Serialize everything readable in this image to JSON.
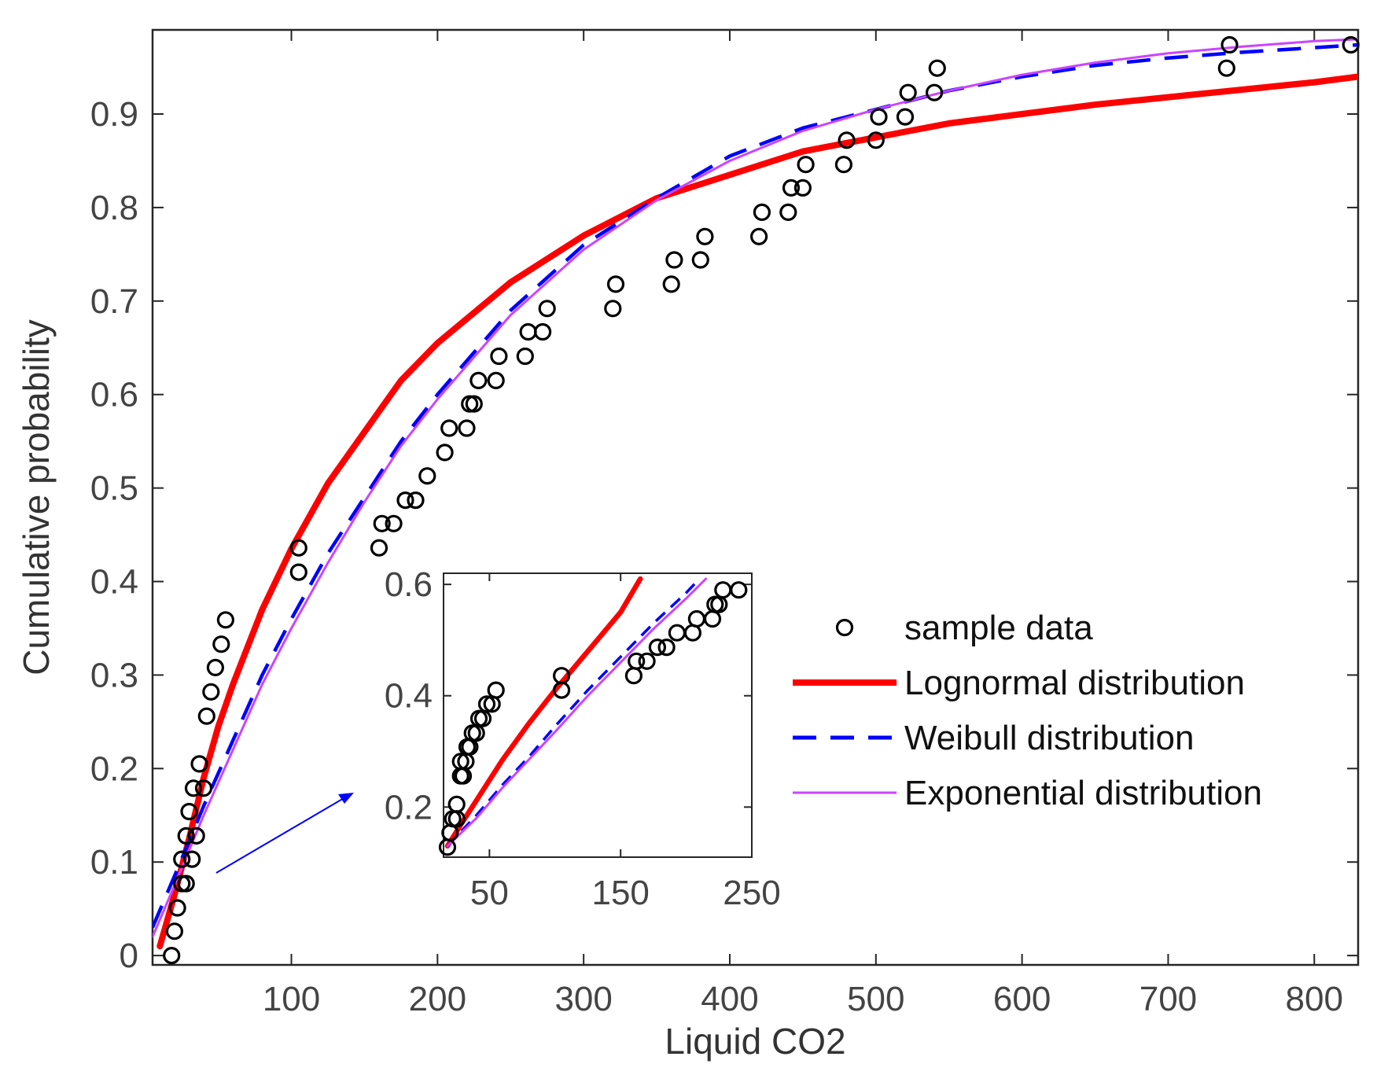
{
  "chart_data": [
    {
      "type": "line",
      "role": "main",
      "xlabel": "Liquid CO2",
      "ylabel": "Cumulative probability",
      "xlim": [
        5,
        830
      ],
      "ylim": [
        -0.01,
        0.99
      ],
      "xticks": [
        100,
        200,
        300,
        400,
        500,
        600,
        700,
        800
      ],
      "yticks": [
        0,
        0.1,
        0.2,
        0.3,
        0.4,
        0.5,
        0.6,
        0.7,
        0.8,
        0.9
      ],
      "ytick_labels": [
        "0",
        "0.1",
        "0.2",
        "0.3",
        "0.4",
        "0.5",
        "0.6",
        "0.7",
        "0.8",
        "0.9"
      ],
      "grid": false,
      "legend_position": "center-right",
      "series": [
        {
          "name": "sample data",
          "kind": "scatter",
          "color": "#000000",
          "x": [
            18,
            20,
            22,
            25,
            25,
            28,
            28,
            30,
            32,
            33,
            35,
            37,
            40,
            42,
            45,
            48,
            52,
            55,
            105,
            105,
            160,
            162,
            170,
            178,
            185,
            193,
            205,
            208,
            220,
            222,
            225,
            228,
            240,
            242,
            260,
            262,
            272,
            275,
            320,
            322,
            360,
            362,
            380,
            383,
            420,
            422,
            440,
            442,
            450,
            452,
            478,
            480,
            500,
            502,
            520,
            522,
            540,
            542,
            740,
            742,
            825
          ],
          "y": [
            0,
            0.026,
            0.051,
            0.077,
            0.103,
            0.077,
            0.128,
            0.154,
            0.103,
            0.179,
            0.128,
            0.205,
            0.179,
            0.256,
            0.282,
            0.308,
            0.333,
            0.359,
            0.41,
            0.436,
            0.436,
            0.462,
            0.462,
            0.487,
            0.487,
            0.513,
            0.538,
            0.564,
            0.564,
            0.59,
            0.59,
            0.615,
            0.615,
            0.641,
            0.641,
            0.667,
            0.667,
            0.692,
            0.692,
            0.718,
            0.718,
            0.744,
            0.744,
            0.769,
            0.769,
            0.795,
            0.795,
            0.821,
            0.821,
            0.846,
            0.846,
            0.872,
            0.872,
            0.897,
            0.897,
            0.923,
            0.923,
            0.949,
            0.949,
            0.974,
            0.974
          ]
        },
        {
          "name": "Lognormal distribution",
          "kind": "line",
          "color": "#ff0000",
          "x": [
            10,
            20,
            30,
            40,
            50,
            60,
            80,
            100,
            125,
            150,
            175,
            200,
            250,
            300,
            350,
            400,
            450,
            500,
            550,
            600,
            650,
            700,
            750,
            800,
            830
          ],
          "y": [
            0.01,
            0.065,
            0.125,
            0.19,
            0.245,
            0.29,
            0.37,
            0.435,
            0.505,
            0.56,
            0.615,
            0.655,
            0.72,
            0.77,
            0.81,
            0.835,
            0.86,
            0.875,
            0.89,
            0.9,
            0.91,
            0.918,
            0.926,
            0.934,
            0.94
          ]
        },
        {
          "name": "Weibull distribution",
          "kind": "line",
          "color": "#0000ff",
          "dashed": true,
          "x": [
            5,
            20,
            40,
            60,
            80,
            100,
            125,
            150,
            175,
            200,
            250,
            300,
            350,
            400,
            450,
            500,
            550,
            600,
            650,
            700,
            750,
            800,
            830
          ],
          "y": [
            0.03,
            0.085,
            0.16,
            0.23,
            0.3,
            0.36,
            0.43,
            0.49,
            0.55,
            0.6,
            0.69,
            0.76,
            0.81,
            0.855,
            0.885,
            0.905,
            0.925,
            0.94,
            0.952,
            0.96,
            0.966,
            0.971,
            0.974
          ]
        },
        {
          "name": "Exponential distribution",
          "kind": "line",
          "color": "#cc44ff",
          "x": [
            5,
            20,
            40,
            60,
            80,
            100,
            125,
            150,
            175,
            200,
            250,
            300,
            350,
            400,
            450,
            500,
            550,
            600,
            650,
            700,
            750,
            800,
            830
          ],
          "y": [
            0.02,
            0.075,
            0.15,
            0.22,
            0.29,
            0.35,
            0.42,
            0.485,
            0.545,
            0.595,
            0.685,
            0.755,
            0.808,
            0.85,
            0.882,
            0.905,
            0.925,
            0.942,
            0.955,
            0.965,
            0.972,
            0.978,
            0.98
          ]
        }
      ]
    },
    {
      "type": "line",
      "role": "inset",
      "xlim": [
        15,
        250
      ],
      "ylim": [
        0.11,
        0.62
      ],
      "xticks": [
        50,
        150,
        250
      ],
      "yticks": [
        0.2,
        0.4,
        0.6
      ],
      "ytick_labels": [
        "0.2",
        "0.4",
        "0.6"
      ],
      "series": [
        {
          "name": "sample data",
          "kind": "scatter",
          "color": "#000000",
          "x": [
            18,
            20,
            22,
            25,
            25,
            28,
            28,
            30,
            32,
            33,
            35,
            37,
            40,
            42,
            45,
            48,
            52,
            55,
            105,
            105,
            160,
            162,
            170,
            178,
            185,
            193,
            205,
            208,
            220,
            222,
            225,
            228,
            240
          ],
          "y": [
            0.128,
            0.154,
            0.179,
            0.179,
            0.205,
            0.256,
            0.282,
            0.256,
            0.282,
            0.308,
            0.308,
            0.333,
            0.333,
            0.359,
            0.359,
            0.385,
            0.385,
            0.41,
            0.41,
            0.436,
            0.436,
            0.462,
            0.462,
            0.487,
            0.487,
            0.513,
            0.513,
            0.538,
            0.538,
            0.564,
            0.564,
            0.59,
            0.59
          ]
        },
        {
          "name": "Lognormal distribution",
          "kind": "line",
          "color": "#ff0000",
          "x": [
            18,
            30,
            45,
            60,
            80,
            100,
            125,
            150,
            165
          ],
          "y": [
            0.13,
            0.175,
            0.23,
            0.285,
            0.35,
            0.41,
            0.48,
            0.55,
            0.61
          ]
        },
        {
          "name": "Weibull distribution",
          "kind": "line",
          "color": "#0000ff",
          "dashed": true,
          "x": [
            18,
            40,
            60,
            80,
            100,
            125,
            150,
            175,
            200,
            210
          ],
          "y": [
            0.13,
            0.185,
            0.24,
            0.29,
            0.345,
            0.41,
            0.47,
            0.53,
            0.585,
            0.61
          ]
        },
        {
          "name": "Exponential distribution",
          "kind": "line",
          "color": "#cc44ff",
          "x": [
            18,
            40,
            60,
            80,
            100,
            125,
            150,
            175,
            200,
            215
          ],
          "y": [
            0.13,
            0.18,
            0.235,
            0.285,
            0.335,
            0.4,
            0.46,
            0.52,
            0.575,
            0.61
          ]
        }
      ]
    }
  ]
}
